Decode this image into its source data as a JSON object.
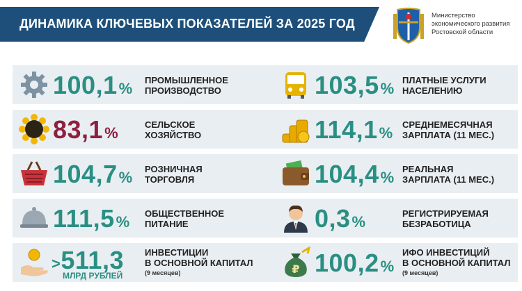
{
  "header": {
    "title": "ДИНАМИКА КЛЮЧЕВЫХ ПОКАЗАТЕЛЕЙ ЗА 2025 ГОД"
  },
  "ministry": {
    "line1": "Министерство",
    "line2": "экономического развития",
    "line3": "Ростовской области"
  },
  "colors": {
    "header": "#1e4f7a",
    "teal": "#2a8f83",
    "maroon": "#8e1f3f",
    "row": "#e9eef2"
  },
  "left": [
    {
      "icon": "gear-icon",
      "value": "100,1",
      "unit": "%",
      "label1": "ПРОМЫШЛЕННОЕ",
      "label2": "ПРОИЗВОДСТВО"
    },
    {
      "icon": "sunflower-icon",
      "value": "83,1",
      "unit": "%",
      "label1": "СЕЛЬСКОЕ",
      "label2": "ХОЗЯЙСТВО"
    },
    {
      "icon": "basket-icon",
      "value": "104,7",
      "unit": "%",
      "label1": "РОЗНИЧНАЯ",
      "label2": "ТОРГОВЛЯ"
    },
    {
      "icon": "cloche-icon",
      "value": "111,5",
      "unit": "%",
      "label1": "ОБЩЕСТВЕННОЕ",
      "label2": "ПИТАНИЕ"
    },
    {
      "icon": "coin-hand-icon",
      "prefix": ">",
      "value": "511,3",
      "sub": "МЛРД РУБЛЕЙ",
      "label1": "ИНВЕСТИЦИИ",
      "label2": "В ОСНОВНОЙ КАПИТАЛ",
      "note": "(9 месяцев)"
    }
  ],
  "right": [
    {
      "icon": "bus-icon",
      "value": "103,5",
      "unit": "%",
      "label1": "ПЛАТНЫЕ УСЛУГИ",
      "label2": "НАСЕЛЕНИЮ"
    },
    {
      "icon": "coins-icon",
      "value": "114,1",
      "unit": "%",
      "label1": "СРЕДНЕМЕСЯЧНАЯ",
      "label2": "ЗАРПЛАТА (11 МЕС.)"
    },
    {
      "icon": "wallet-icon",
      "value": "104,4",
      "unit": "%",
      "label1": "РЕАЛЬНАЯ",
      "label2": "ЗАРПЛАТА (11 МЕС.)"
    },
    {
      "icon": "person-icon",
      "value": "0,3",
      "unit": "%",
      "label1": "РЕГИСТРИРУЕМАЯ",
      "label2": "БЕЗРАБОТИЦА"
    },
    {
      "icon": "money-bag-icon",
      "value": "100,2",
      "unit": "%",
      "label1": "ИФО ИНВЕСТИЦИЙ",
      "label2": "В ОСНОВНОЙ КАПИТАЛ",
      "note": "(9 месяцев)"
    }
  ]
}
